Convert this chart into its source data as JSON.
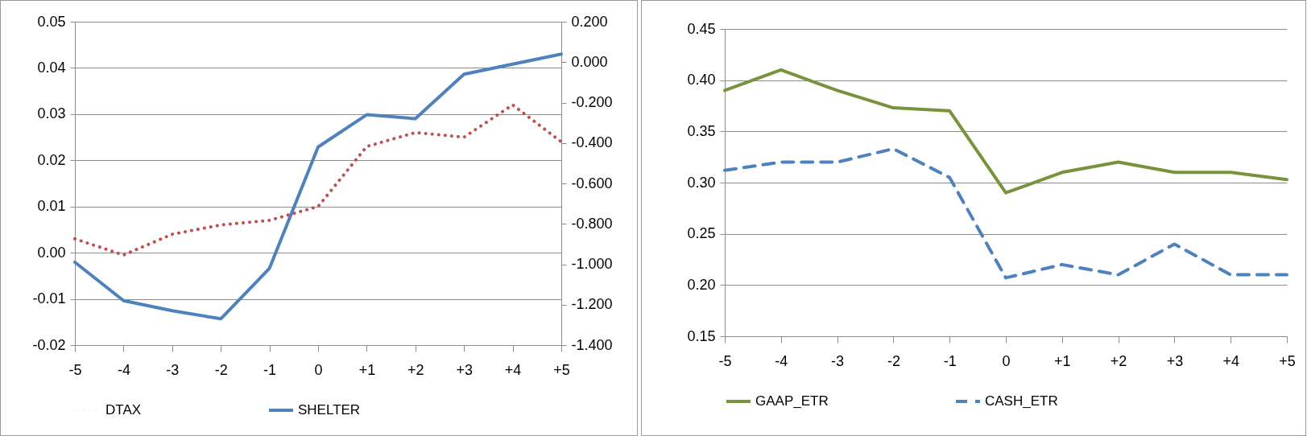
{
  "chart_data": [
    {
      "type": "line",
      "categories": [
        "-5",
        "-4",
        "-3",
        "-2",
        "-1",
        "0",
        "+1",
        "+2",
        "+3",
        "+4",
        "+5"
      ],
      "series": [
        {
          "name": "DTAX",
          "color": "#c0504d",
          "line_style": "dotted",
          "values": [
            0.003,
            -0.0005,
            0.004,
            0.006,
            0.007,
            0.01,
            0.023,
            0.026,
            0.025,
            0.032,
            0.024
          ]
        },
        {
          "name": "SHELTER",
          "color": "#4f81bd",
          "line_style": "solid",
          "axis": "y2",
          "values": [
            -0.99,
            -1.18,
            -1.23,
            -1.27,
            -1.02,
            -0.42,
            -0.26,
            -0.28,
            -0.06,
            -0.01,
            0.04
          ]
        }
      ],
      "ylim": [
        -0.02,
        0.05
      ],
      "yticks": [
        {
          "value": -0.02,
          "label": "-0.02"
        },
        {
          "value": -0.01,
          "label": "-0.01"
        },
        {
          "value": 0,
          "label": "0.00"
        },
        {
          "value": 0.01,
          "label": "0.01"
        },
        {
          "value": 0.02,
          "label": "0.02"
        },
        {
          "value": 0.03,
          "label": "0.03"
        },
        {
          "value": 0.04,
          "label": "0.04"
        },
        {
          "value": 0.05,
          "label": "0.05"
        }
      ],
      "y2lim": [
        -1.4,
        0.2
      ],
      "y2ticks": [
        {
          "value": -1.4,
          "label": "-1.400"
        },
        {
          "value": -1.2,
          "label": "-1.200"
        },
        {
          "value": -1,
          "label": "-1.000"
        },
        {
          "value": -0.8,
          "label": "-0.800"
        },
        {
          "value": -0.6,
          "label": "-0.600"
        },
        {
          "value": -0.4,
          "label": "-0.400"
        },
        {
          "value": -0.2,
          "label": "-0.200"
        },
        {
          "value": 0,
          "label": "0.000"
        },
        {
          "value": 0.2,
          "label": "0.200"
        }
      ],
      "grid": "y",
      "legend": "bottom",
      "marker": "none"
    },
    {
      "type": "line",
      "categories": [
        "-5",
        "-4",
        "-3",
        "-2",
        "-1",
        "0",
        "+1",
        "+2",
        "+3",
        "+4",
        "+5"
      ],
      "series": [
        {
          "name": "GAAP_ETR",
          "color": "#77933c",
          "line_style": "solid",
          "values": [
            0.39,
            0.41,
            0.39,
            0.373,
            0.37,
            0.29,
            0.31,
            0.32,
            0.31,
            0.31,
            0.303
          ]
        },
        {
          "name": "CASH_ETR",
          "color": "#4f81bd",
          "line_style": "dashed",
          "values": [
            0.312,
            0.32,
            0.32,
            0.333,
            0.305,
            0.207,
            0.22,
            0.21,
            0.24,
            0.21,
            0.21
          ]
        }
      ],
      "ylim": [
        0.15,
        0.45
      ],
      "yticks": [
        {
          "value": 0.15,
          "label": "0.15"
        },
        {
          "value": 0.2,
          "label": "0.20"
        },
        {
          "value": 0.25,
          "label": "0.25"
        },
        {
          "value": 0.3,
          "label": "0.30"
        },
        {
          "value": 0.35,
          "label": "0.35"
        },
        {
          "value": 0.4,
          "label": "0.40"
        },
        {
          "value": 0.45,
          "label": "0.45"
        }
      ],
      "grid": "y",
      "legend": "bottom",
      "marker": "none"
    }
  ]
}
